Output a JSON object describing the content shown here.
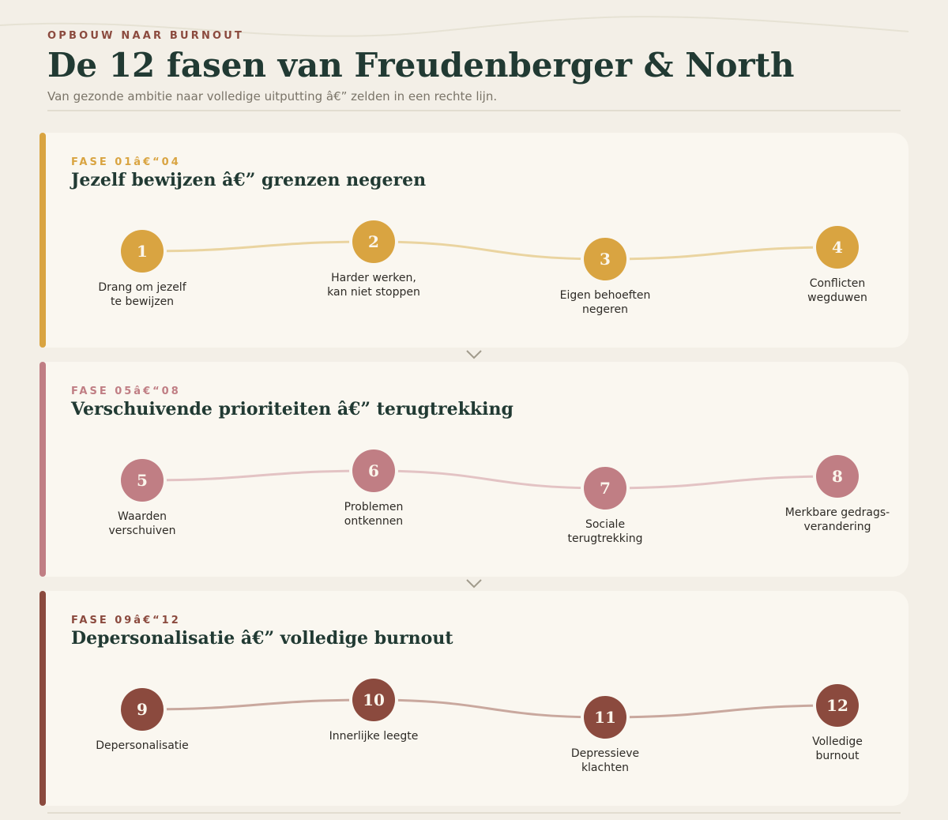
{
  "header": {
    "kicker": "OPBOUW NAAR BURNOUT",
    "title": "De 12 fasen van Freudenberger & North",
    "subtitle": "Van gezonde ambitie naar volledige uitputting â€” zelden in een rechte lijn."
  },
  "phases": [
    {
      "kicker": "FASE 01â€“04",
      "title": "Jezelf bewijzen â€” grenzen negeren",
      "color": "#d9a441",
      "track_color": "#ead4a0",
      "stages": [
        {
          "number": "1",
          "label": "Drang om jezelf\nte bewijzen"
        },
        {
          "number": "2",
          "label": "Harder werken,\nkan niet stoppen"
        },
        {
          "number": "3",
          "label": "Eigen behoeften\nnegeren"
        },
        {
          "number": "4",
          "label": "Conflicten\nwegduwen"
        }
      ]
    },
    {
      "kicker": "FASE 05â€“08",
      "title": "Verschuivende prioriteiten â€” terugtrekking",
      "color": "#c07e84",
      "track_color": "#e3c3c4",
      "stages": [
        {
          "number": "5",
          "label": "Waarden\nverschuiven"
        },
        {
          "number": "6",
          "label": "Problemen\nontkennen"
        },
        {
          "number": "7",
          "label": "Sociale\nterugtrekking"
        },
        {
          "number": "8",
          "label": "Merkbare gedrags-\nverandering"
        }
      ]
    },
    {
      "kicker": "FASE 09â€“12",
      "title": "Depersonalisatie â€” volledige burnout",
      "color": "#8b4a3e",
      "track_color": "#c9a89e",
      "stages": [
        {
          "number": "9",
          "label": "Depersonalisatie"
        },
        {
          "number": "10",
          "label": "Innerlijke leegte"
        },
        {
          "number": "11",
          "label": "Depressieve\nklachten"
        },
        {
          "number": "12",
          "label": "Volledige\nburnout"
        }
      ]
    }
  ]
}
